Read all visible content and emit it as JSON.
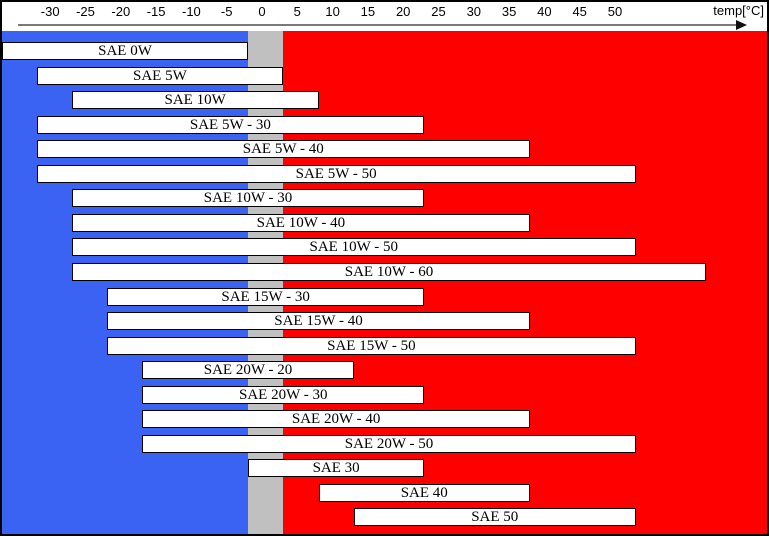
{
  "chart_data": {
    "type": "bar",
    "variant": "horizontal-range-bars",
    "title": "",
    "xlabel": "temp[°C]",
    "ylabel": "",
    "legend": null,
    "grid": false,
    "axis": {
      "title": "temp[°C]",
      "unit": "°C",
      "position": "top",
      "tick_values": [
        -30,
        -25,
        -20,
        -15,
        -10,
        -5,
        0,
        5,
        10,
        15,
        20,
        25,
        30,
        35,
        40,
        45,
        50
      ],
      "tick_labels": [
        "-30",
        "-25",
        "-20",
        "-15",
        "-10",
        "-5",
        "0",
        "5",
        "10",
        "15",
        "20",
        "25",
        "30",
        "35",
        "40",
        "45",
        "50"
      ],
      "tick_range": [
        -30,
        50
      ],
      "canvas_range": [
        -35,
        74
      ]
    },
    "bars": [
      {
        "label": "SAE 0W",
        "temp_min": -35,
        "temp_max": 0
      },
      {
        "label": "SAE 5W",
        "temp_min": -30,
        "temp_max": 5
      },
      {
        "label": "SAE 10W",
        "temp_min": -25,
        "temp_max": 10
      },
      {
        "label": "SAE 5W - 30",
        "temp_min": -30,
        "temp_max": 25
      },
      {
        "label": "SAE 5W - 40",
        "temp_min": -30,
        "temp_max": 40
      },
      {
        "label": "SAE 5W - 50",
        "temp_min": -30,
        "temp_max": 55
      },
      {
        "label": "SAE 10W - 30",
        "temp_min": -25,
        "temp_max": 25
      },
      {
        "label": "SAE 10W - 40",
        "temp_min": -25,
        "temp_max": 40
      },
      {
        "label": "SAE 10W - 50",
        "temp_min": -25,
        "temp_max": 55
      },
      {
        "label": "SAE 10W - 60",
        "temp_min": -25,
        "temp_max": 65
      },
      {
        "label": "SAE 15W - 30",
        "temp_min": -20,
        "temp_max": 25
      },
      {
        "label": "SAE 15W - 40",
        "temp_min": -20,
        "temp_max": 40
      },
      {
        "label": "SAE 15W - 50",
        "temp_min": -20,
        "temp_max": 55
      },
      {
        "label": "SAE 20W - 20",
        "temp_min": -15,
        "temp_max": 15
      },
      {
        "label": "SAE 20W - 30",
        "temp_min": -15,
        "temp_max": 25
      },
      {
        "label": "SAE 20W - 40",
        "temp_min": -15,
        "temp_max": 40
      },
      {
        "label": "SAE 20W - 50",
        "temp_min": -15,
        "temp_max": 55
      },
      {
        "label": "SAE 30",
        "temp_min": 0,
        "temp_max": 25
      },
      {
        "label": "SAE 40",
        "temp_min": 10,
        "temp_max": 40
      },
      {
        "label": "SAE 50",
        "temp_min": 15,
        "temp_max": 55
      }
    ],
    "zones": [
      {
        "name": "cold",
        "color": "#3B63F3",
        "temp_from": -35,
        "temp_to": 0
      },
      {
        "name": "transition",
        "color": "#C0C0C0",
        "temp_from": 0,
        "temp_to": 5
      },
      {
        "name": "hot",
        "color": "#FF0000",
        "temp_from": 5,
        "temp_to": 74
      }
    ],
    "bar_style": {
      "fill": "#FFFFFF",
      "border": "#000000",
      "text_color": "#000000"
    }
  }
}
